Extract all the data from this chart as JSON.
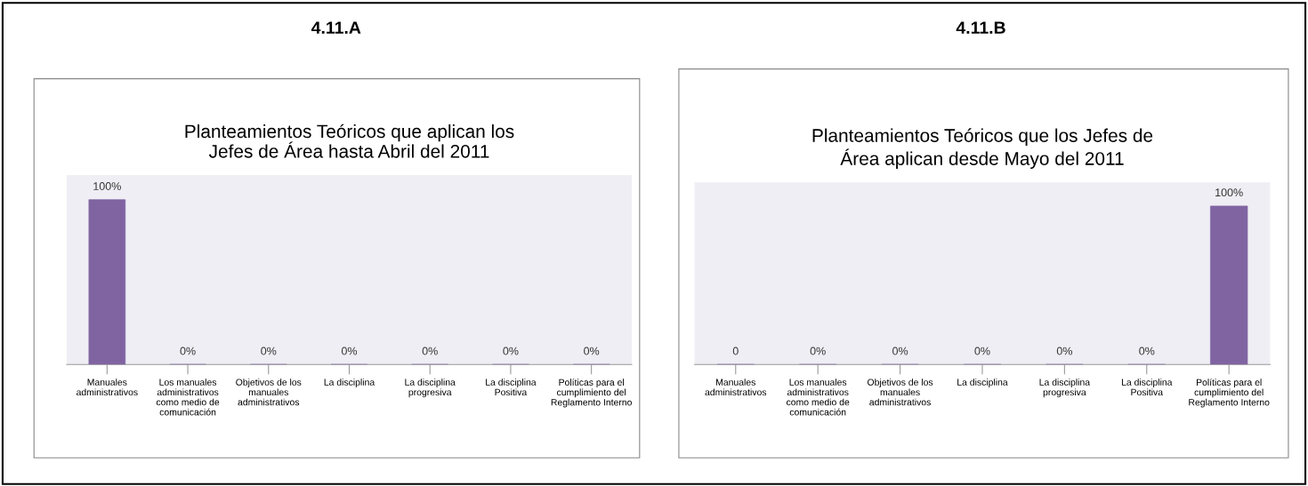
{
  "chart_data": [
    {
      "type": "bar",
      "title": "4.11.A",
      "subtitle": "Planteamientos Teóricos que aplican los Jefes de Área hasta Abril del 2011",
      "categories": [
        "Manuales administrativos",
        "Los manuales administrativos como medio de comunicación",
        "Objetivos de los manuales administrativos",
        "La disciplina",
        "La disciplina progresiva",
        "La disciplina Positiva",
        "Políticas para el cumplimiento del Reglamento Interno"
      ],
      "color": "#8064a2",
      "values": [
        100,
        0,
        0,
        0,
        0,
        0,
        0
      ],
      "value_labels": [
        "100%",
        "0%",
        "0%",
        "0%",
        "0%",
        "0%",
        "0%"
      ],
      "legend": false,
      "grid": false
    },
    {
      "type": "bar",
      "title": "4.11.B",
      "subtitle": "Planteamientos Teóricos que los Jefes de Área aplican desde Mayo del 2011",
      "categories": [
        "Manuales administrativos",
        "Los manuales administrativos como medio de comunicación",
        "Objetivos de los manuales administrativos",
        "La disciplina",
        "La disciplina progresiva",
        "La disciplina Positiva",
        "Políticas para el cumplimiento del Reglamento Interno"
      ],
      "color": "#8064a2",
      "values": [
        0,
        0,
        0,
        0,
        0,
        0,
        100
      ],
      "value_labels": [
        "0",
        "0%",
        "0%",
        "0%",
        "0%",
        "0%",
        "100%"
      ],
      "legend": false,
      "grid": false
    }
  ]
}
